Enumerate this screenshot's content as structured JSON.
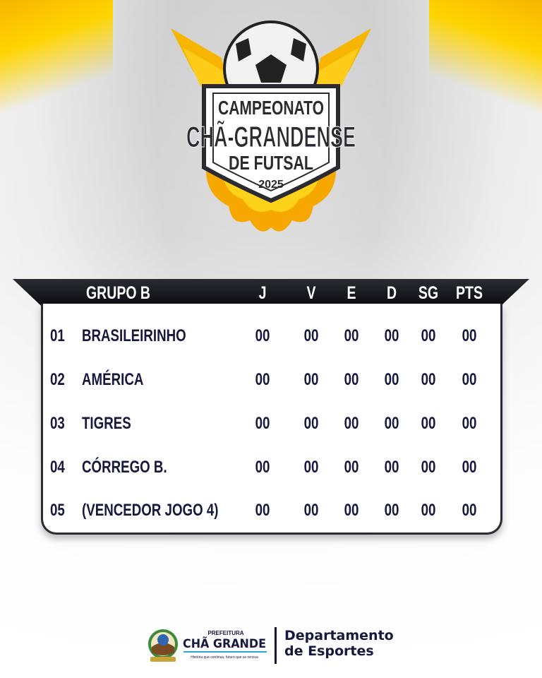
{
  "logo": {
    "line1": "CAMPEONATO",
    "line2": "CHÃ-GRANDENSE",
    "line3": "DE FUTSAL",
    "year": "2025"
  },
  "table": {
    "group_title": "GRUPO B",
    "columns": [
      "J",
      "V",
      "E",
      "D",
      "SG",
      "PTS"
    ],
    "rows": [
      {
        "pos": "01",
        "team": "BRASILEIRINHO",
        "values": [
          "00",
          "00",
          "00",
          "00",
          "00",
          "00"
        ]
      },
      {
        "pos": "02",
        "team": "AMÉRICA",
        "values": [
          "00",
          "00",
          "00",
          "00",
          "00",
          "00"
        ]
      },
      {
        "pos": "03",
        "team": "TIGRES",
        "values": [
          "00",
          "00",
          "00",
          "00",
          "00",
          "00"
        ]
      },
      {
        "pos": "04",
        "team": "CÓRREGO B.",
        "values": [
          "00",
          "00",
          "00",
          "00",
          "00",
          "00"
        ]
      },
      {
        "pos": "05",
        "team": "(VENCEDOR JOGO 4)",
        "values": [
          "00",
          "00",
          "00",
          "00",
          "00",
          "00"
        ]
      }
    ]
  },
  "footer": {
    "prefeitura": "PREFEITURA",
    "city": "CHÃ GRANDE",
    "slogan": "História que continua, futuro que se renova",
    "dept_line1": "Departamento",
    "dept_line2": "de Esportes"
  },
  "colors": {
    "navy": "#16183e",
    "gold": "#f7b500",
    "header": "#0b0b10"
  }
}
